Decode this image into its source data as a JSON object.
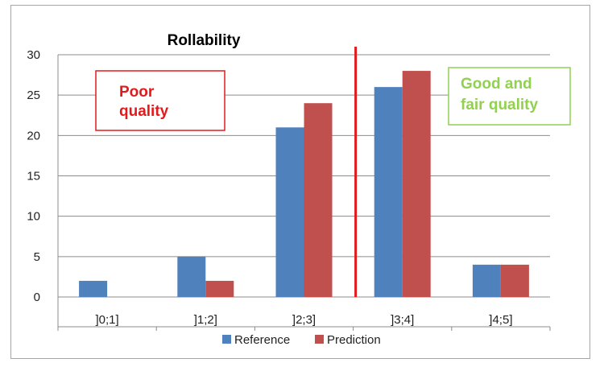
{
  "chart_data": {
    "type": "bar",
    "title": "Rollability",
    "xlabel": "",
    "ylabel": "",
    "categories": [
      "]0;1]",
      "]1;2]",
      "]2;3]",
      "]3;4]",
      "]4;5]"
    ],
    "series": [
      {
        "name": "Reference",
        "values": [
          2,
          5,
          21,
          26,
          4
        ],
        "color": "#4f81bd"
      },
      {
        "name": "Prediction",
        "values": [
          0,
          2,
          24,
          28,
          4
        ],
        "color": "#c0504d"
      }
    ],
    "ylim": [
      0,
      30
    ],
    "yticks": [
      0,
      5,
      10,
      15,
      20,
      25,
      30
    ],
    "grid": true,
    "legend_position": "bottom",
    "threshold_after_category": "]3;4]",
    "threshold_color": "#e31a1c",
    "annotations": [
      {
        "lines": [
          "Poor",
          "quality"
        ],
        "color": "#e31a1c",
        "border": "#e31a1c"
      },
      {
        "lines": [
          "Good and",
          "fair quality"
        ],
        "color": "#92d050",
        "border": "#92d050"
      }
    ]
  }
}
